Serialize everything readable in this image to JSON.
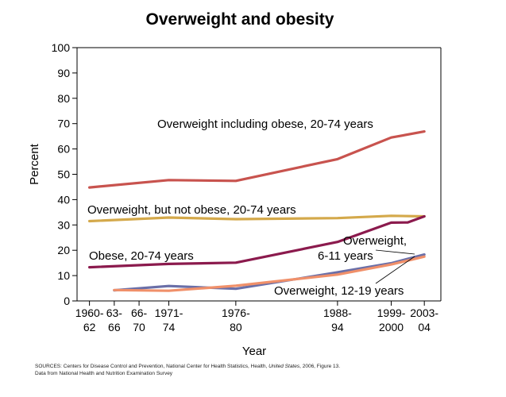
{
  "chart_data": {
    "type": "line",
    "title": "Overweight and obesity",
    "xlabel": "Year",
    "ylabel": "Percent",
    "ylim": [
      0,
      100
    ],
    "y_ticks": [
      0,
      10,
      20,
      30,
      40,
      50,
      60,
      70,
      80,
      90,
      100
    ],
    "grid": false,
    "x_ticks": [
      {
        "x": 1960,
        "line1": "1960-",
        "line2": "62"
      },
      {
        "x": 1963,
        "line1": "63-",
        "line2": "66"
      },
      {
        "x": 1966,
        "line1": "66-",
        "line2": "70"
      },
      {
        "x": 1969.6,
        "line1": "1971-",
        "line2": "74"
      },
      {
        "x": 1977.7,
        "line1": "1976-",
        "line2": "80"
      },
      {
        "x": 1990,
        "line1": "1988-",
        "line2": "94"
      },
      {
        "x": 1996.5,
        "line1": "1999-",
        "line2": "2000"
      },
      {
        "x": 2000.5,
        "line1": "2003-",
        "line2": "04"
      }
    ],
    "xlim": [
      1958.5,
      2002.5
    ],
    "series": [
      {
        "name": "Overweight including obese, 20-74 years",
        "color": "#c8534e",
        "x": [
          1960,
          1969.6,
          1977.7,
          1990,
          1996.5,
          2000.5
        ],
        "values": [
          44.8,
          47.7,
          47.4,
          56.0,
          64.5,
          66.9
        ]
      },
      {
        "name": "Overweight, but not obese, 20-74 years",
        "color": "#d4a94b",
        "x": [
          1960,
          1969.6,
          1977.7,
          1990,
          1996.5,
          2000.5
        ],
        "values": [
          31.5,
          32.9,
          32.3,
          32.7,
          33.6,
          33.4
        ]
      },
      {
        "name": "Obese, 20-74 years",
        "color": "#8b1a4d",
        "x": [
          1960,
          1969.6,
          1977.7,
          1990,
          1996.5,
          1998.5,
          2000.5
        ],
        "values": [
          13.3,
          14.6,
          15.1,
          23.3,
          30.9,
          31.0,
          33.4
        ]
      },
      {
        "name": "Overweight, 6-11 years",
        "color": "#6a6fa8",
        "x": [
          1963,
          1969.6,
          1977.7,
          1990,
          1996.5,
          2000.5
        ],
        "values": [
          4.2,
          5.9,
          4.8,
          11.3,
          14.9,
          18.3
        ]
      },
      {
        "name": "Overweight, 12-19 years",
        "color": "#f0906a",
        "x": [
          1963,
          1969.6,
          1977.7,
          1990,
          1996.5,
          2000.5
        ],
        "values": [
          4.3,
          4.0,
          6.0,
          10.4,
          14.4,
          17.5
        ]
      }
    ],
    "labels": {
      "overweight_incl_obese": "Overweight including obese, 20-74 years",
      "overweight_not_obese": "Overweight, but not obese, 20-74 years",
      "obese": "Obese, 20-74 years",
      "overweight_child_line1": "Overweight,",
      "overweight_child_line2": "6-11 years",
      "overweight_teen": "Overweight, 12-19 years"
    },
    "source_line1_prefix": "SOURCES: Centers for Disease Control and Prevention, National Center for Health Statistics, Health, ",
    "source_line1_italic": "United States",
    "source_line1_suffix": ", 2006, Figure 13.",
    "source_line2": "Data from National Health and Nutrition Examination Survey"
  }
}
